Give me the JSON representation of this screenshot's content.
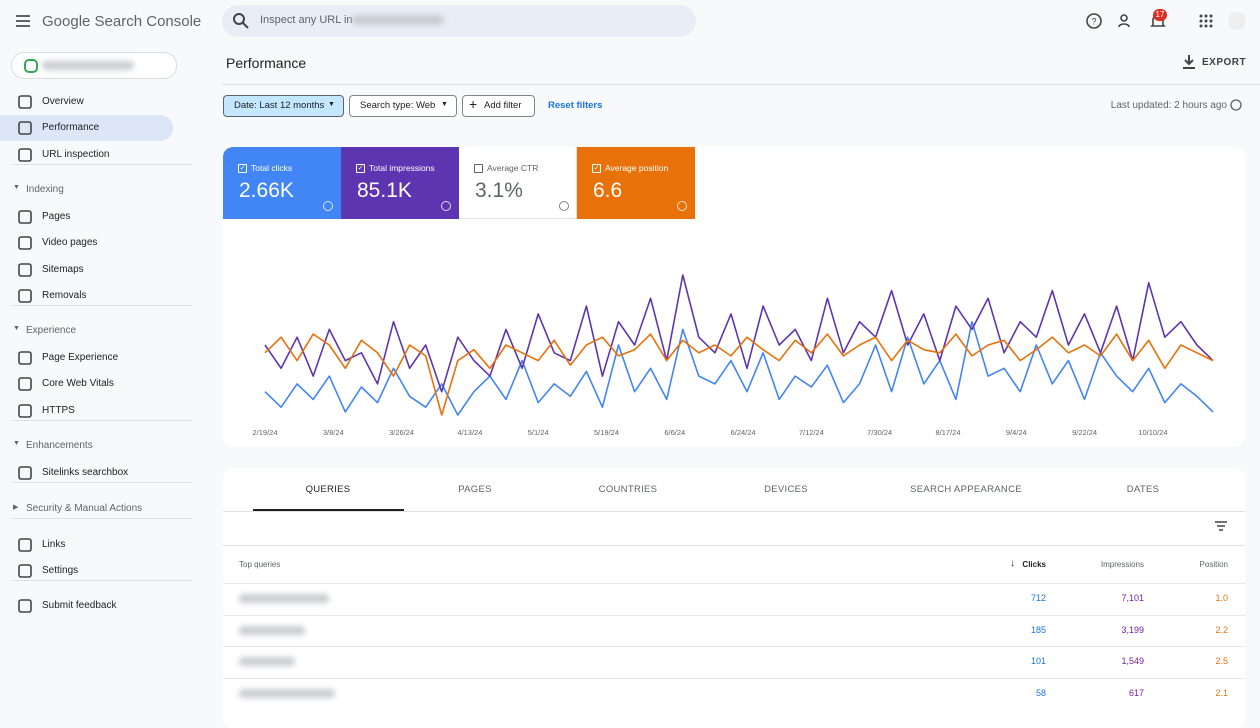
{
  "header": {
    "product": "Google Search Console",
    "search_placeholder": "Inspect any URL in",
    "notification_count": "17"
  },
  "nav": {
    "top": [
      "Overview",
      "Performance",
      "URL inspection"
    ],
    "sections": [
      {
        "title": "Indexing",
        "items": [
          "Pages",
          "Video pages",
          "Sitemaps",
          "Removals"
        ]
      },
      {
        "title": "Experience",
        "items": [
          "Page Experience",
          "Core Web Vitals",
          "HTTPS"
        ]
      },
      {
        "title": "Enhancements",
        "items": [
          "Sitelinks searchbox"
        ]
      },
      {
        "title": "Security & Manual Actions",
        "items": []
      }
    ],
    "links": [
      "Links",
      "Settings"
    ],
    "bottom": [
      "Submit feedback"
    ]
  },
  "page": {
    "title": "Performance",
    "export": "EXPORT",
    "filters": [
      "Date: Last 12 months",
      "Search type: Web",
      "Add filter"
    ],
    "reset": "Reset filters",
    "last_updated": "Last updated: 2 hours ago"
  },
  "metrics": [
    {
      "label": "Total clicks",
      "value": "2.66K",
      "checked": true,
      "color": "#4285f4"
    },
    {
      "label": "Total impressions",
      "value": "85.1K",
      "checked": true,
      "color": "#5e35b1"
    },
    {
      "label": "Average CTR",
      "value": "3.1%",
      "checked": false,
      "color": "#00897b"
    },
    {
      "label": "Average position",
      "value": "6.6",
      "checked": true,
      "color": "#e8710a"
    }
  ],
  "chart": {
    "type": "line",
    "xticks": [
      "2/19/24",
      "3/8/24",
      "3/26/24",
      "4/13/24",
      "5/1/24",
      "5/19/24",
      "6/6/24",
      "6/24/24",
      "7/12/24",
      "7/30/24",
      "8/17/24",
      "9/4/24",
      "9/22/24",
      "10/10/24"
    ],
    "series": [
      {
        "color": "#4285f4",
        "values": [
          25,
          15,
          30,
          20,
          35,
          12,
          28,
          18,
          40,
          22,
          15,
          30,
          10,
          25,
          35,
          20,
          45,
          18,
          30,
          22,
          38,
          15,
          55,
          25,
          40,
          20,
          65,
          35,
          30,
          45,
          25,
          50,
          20,
          35,
          28,
          42,
          18,
          30,
          55,
          25,
          60,
          30,
          45,
          20,
          70,
          35,
          40,
          25,
          55,
          30,
          45,
          20,
          50,
          35,
          25,
          40,
          18,
          30,
          22,
          12
        ]
      },
      {
        "color": "#5e35b1",
        "values": [
          55,
          40,
          60,
          35,
          65,
          45,
          50,
          30,
          70,
          40,
          55,
          25,
          60,
          45,
          35,
          65,
          40,
          75,
          50,
          45,
          80,
          35,
          70,
          55,
          85,
          45,
          100,
          60,
          50,
          75,
          40,
          80,
          55,
          65,
          45,
          85,
          50,
          70,
          60,
          90,
          55,
          75,
          45,
          80,
          65,
          85,
          50,
          70,
          60,
          90,
          55,
          75,
          50,
          80,
          45,
          95,
          60,
          70,
          55,
          45
        ]
      },
      {
        "color": "#e8710a",
        "values": [
          50,
          60,
          45,
          62,
          55,
          40,
          58,
          50,
          35,
          55,
          48,
          10,
          45,
          52,
          40,
          55,
          50,
          45,
          58,
          42,
          55,
          60,
          48,
          52,
          62,
          45,
          58,
          50,
          55,
          48,
          60,
          52,
          45,
          58,
          50,
          62,
          48,
          55,
          60,
          45,
          58,
          52,
          50,
          62,
          48,
          55,
          58,
          45,
          52,
          60,
          50,
          55,
          48,
          62,
          45,
          58,
          40,
          55,
          50,
          45
        ]
      }
    ]
  },
  "table": {
    "tabs": [
      "QUERIES",
      "PAGES",
      "COUNTRIES",
      "DEVICES",
      "SEARCH APPEARANCE",
      "DATES"
    ],
    "columns": [
      "Top queries",
      "Clicks",
      "Impressions",
      "Position"
    ],
    "rows": [
      {
        "clicks": 712,
        "impressions": "7,101",
        "position": "1.0"
      },
      {
        "clicks": 185,
        "impressions": "3,199",
        "position": "2.2"
      },
      {
        "clicks": 101,
        "impressions": "1,549",
        "position": "2.5"
      },
      {
        "clicks": 58,
        "impressions": 617,
        "position": "2.1"
      }
    ]
  }
}
